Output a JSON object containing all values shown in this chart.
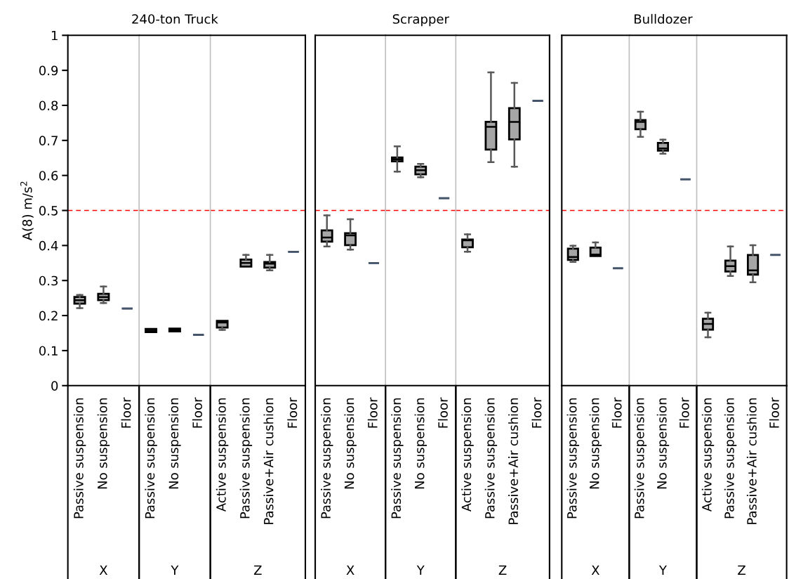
{
  "chart_data": [
    {
      "type": "box",
      "ylabel": "A(8) m/s$^{2}$",
      "xlabel": "X",
      "categories": [
        "Passive suspension",
        "No suspension",
        "Floor"
      ],
      "ylim": [
        0,
        1
      ],
      "yticks": [
        0,
        0.1,
        0.2,
        0.3,
        0.4,
        0.5,
        0.6,
        0.7,
        0.8,
        0.9,
        1
      ],
      "series": [
        {
          "colors": [
            "#a6a6a6",
            "#a6a6a6",
            "#44546a"
          ],
          "boxes": [
            {
              "low": 0.221,
              "q1": 0.234,
              "median": 0.244,
              "q3": 0.253,
              "high": 0.259
            },
            {
              "low": 0.236,
              "q1": 0.244,
              "median": 0.253,
              "q3": 0.262,
              "high": 0.283
            },
            {
              "low": 0.22,
              "q1": 0.22,
              "median": 0.22,
              "q3": 0.22,
              "high": 0.22
            }
          ]
        }
      ],
      "ref_lines": [
        {
          "axis": "y",
          "value": 0.5,
          "color": "#ff0000",
          "line_style": "dashed"
        }
      ]
    },
    {
      "type": "box",
      "title": "240-ton Truck",
      "xlabel": "Y",
      "tick_labels": "x",
      "categories": [
        "Passive suspension",
        "No suspension",
        "Floor"
      ],
      "ylim": [
        0,
        1
      ],
      "series": [
        {
          "colors": [
            "#a6a6a6",
            "#a6a6a6",
            "#44546a"
          ],
          "boxes": [
            {
              "low": 0.153,
              "q1": 0.153,
              "median": 0.157,
              "q3": 0.162,
              "high": 0.162
            },
            {
              "low": 0.155,
              "q1": 0.155,
              "median": 0.159,
              "q3": 0.163,
              "high": 0.163
            },
            {
              "low": 0.145,
              "q1": 0.145,
              "median": 0.145,
              "q3": 0.145,
              "high": 0.145
            }
          ]
        }
      ],
      "ref_lines": [
        {
          "axis": "y",
          "value": 0.5,
          "color": "#ff0000",
          "line_style": "dashed"
        }
      ]
    },
    {
      "type": "box",
      "xlabel": "Z",
      "tick_labels": "x",
      "categories": [
        "Active suspension",
        "Passive suspension",
        "Passive+Air cushion",
        "Floor"
      ],
      "ylim": [
        0,
        1
      ],
      "series": [
        {
          "colors": [
            "#a6a6a6",
            "#a6a6a6",
            "#a6a6a6",
            "#44546a"
          ],
          "boxes": [
            {
              "low": 0.159,
              "q1": 0.166,
              "median": 0.18,
              "q3": 0.185,
              "high": 0.185
            },
            {
              "low": 0.34,
              "q1": 0.34,
              "median": 0.35,
              "q3": 0.36,
              "high": 0.373
            },
            {
              "low": 0.329,
              "q1": 0.337,
              "median": 0.348,
              "q3": 0.353,
              "high": 0.373
            },
            {
              "low": 0.382,
              "q1": 0.382,
              "median": 0.382,
              "q3": 0.382,
              "high": 0.382
            }
          ]
        }
      ],
      "ref_lines": [
        {
          "axis": "y",
          "value": 0.5,
          "color": "#ff0000",
          "line_style": "dashed"
        }
      ]
    },
    {
      "type": "box",
      "xlabel": "X",
      "tick_labels": "x",
      "categories": [
        "Passive suspension",
        "No suspension",
        "Floor"
      ],
      "ylim": [
        0,
        1
      ],
      "series": [
        {
          "colors": [
            "#a6a6a6",
            "#a6a6a6",
            "#44546a"
          ],
          "boxes": [
            {
              "low": 0.397,
              "q1": 0.411,
              "median": 0.423,
              "q3": 0.443,
              "high": 0.486
            },
            {
              "low": 0.388,
              "q1": 0.401,
              "median": 0.429,
              "q3": 0.435,
              "high": 0.475
            },
            {
              "low": 0.35,
              "q1": 0.35,
              "median": 0.35,
              "q3": 0.35,
              "high": 0.35
            }
          ]
        }
      ],
      "ref_lines": [
        {
          "axis": "y",
          "value": 0.5,
          "color": "#ff0000",
          "line_style": "dashed"
        }
      ]
    },
    {
      "type": "box",
      "title": "Scrapper",
      "xlabel": "Y",
      "tick_labels": "x",
      "categories": [
        "Passive suspension",
        "No suspension",
        "Floor"
      ],
      "ylim": [
        0,
        1
      ],
      "series": [
        {
          "colors": [
            "#a6a6a6",
            "#a6a6a6",
            "#44546a"
          ],
          "boxes": [
            {
              "low": 0.611,
              "q1": 0.64,
              "median": 0.646,
              "q3": 0.651,
              "high": 0.683
            },
            {
              "low": 0.595,
              "q1": 0.603,
              "median": 0.615,
              "q3": 0.625,
              "high": 0.633
            },
            {
              "low": 0.535,
              "q1": 0.535,
              "median": 0.535,
              "q3": 0.535,
              "high": 0.535
            }
          ]
        }
      ],
      "ref_lines": [
        {
          "axis": "y",
          "value": 0.5,
          "color": "#ff0000",
          "line_style": "dashed"
        }
      ]
    },
    {
      "type": "box",
      "xlabel": "Z",
      "tick_labels": "x",
      "categories": [
        "Active suspension",
        "Passive suspension",
        "Passive+Air cushion",
        "Floor"
      ],
      "ylim": [
        0,
        1
      ],
      "series": [
        {
          "colors": [
            "#a6a6a6",
            "#a6a6a6",
            "#a6a6a6",
            "#44546a"
          ],
          "boxes": [
            {
              "low": 0.382,
              "q1": 0.395,
              "median": 0.415,
              "q3": 0.417,
              "high": 0.432
            },
            {
              "low": 0.638,
              "q1": 0.674,
              "median": 0.739,
              "q3": 0.753,
              "high": 0.894
            },
            {
              "low": 0.625,
              "q1": 0.703,
              "median": 0.753,
              "q3": 0.792,
              "high": 0.864
            },
            {
              "low": 0.813,
              "q1": 0.813,
              "median": 0.813,
              "q3": 0.813,
              "high": 0.813
            }
          ]
        }
      ],
      "ref_lines": [
        {
          "axis": "y",
          "value": 0.5,
          "color": "#ff0000",
          "line_style": "dashed"
        }
      ]
    },
    {
      "type": "box",
      "xlabel": "X",
      "tick_labels": "x",
      "categories": [
        "Passive suspension",
        "No suspension",
        "Floor"
      ],
      "ylim": [
        0,
        1
      ],
      "series": [
        {
          "colors": [
            "#a6a6a6",
            "#a6a6a6",
            "#44546a"
          ],
          "boxes": [
            {
              "low": 0.353,
              "q1": 0.359,
              "median": 0.367,
              "q3": 0.391,
              "high": 0.399
            },
            {
              "low": 0.37,
              "q1": 0.37,
              "median": 0.374,
              "q3": 0.394,
              "high": 0.409
            },
            {
              "low": 0.335,
              "q1": 0.335,
              "median": 0.335,
              "q3": 0.335,
              "high": 0.335
            }
          ]
        }
      ],
      "ref_lines": [
        {
          "axis": "y",
          "value": 0.5,
          "color": "#ff0000",
          "line_style": "dashed"
        }
      ]
    },
    {
      "type": "box",
      "title": "Bulldozer",
      "xlabel": "Y",
      "tick_labels": "x",
      "categories": [
        "Passive suspension",
        "No suspension",
        "Floor"
      ],
      "ylim": [
        0,
        1
      ],
      "series": [
        {
          "colors": [
            "#a6a6a6",
            "#a6a6a6",
            "#44546a"
          ],
          "boxes": [
            {
              "low": 0.71,
              "q1": 0.732,
              "median": 0.753,
              "q3": 0.758,
              "high": 0.782
            },
            {
              "low": 0.662,
              "q1": 0.671,
              "median": 0.677,
              "q3": 0.693,
              "high": 0.702
            },
            {
              "low": 0.589,
              "q1": 0.589,
              "median": 0.589,
              "q3": 0.589,
              "high": 0.589
            }
          ]
        }
      ],
      "ref_lines": [
        {
          "axis": "y",
          "value": 0.5,
          "color": "#ff0000",
          "line_style": "dashed"
        }
      ]
    },
    {
      "type": "box",
      "xlabel": "Z",
      "tick_labels": "x",
      "categories": [
        "Active suspension",
        "Passive suspension",
        "Passive+Air cushion",
        "Floor"
      ],
      "ylim": [
        0,
        1
      ],
      "series": [
        {
          "colors": [
            "#a6a6a6",
            "#a6a6a6",
            "#a6a6a6",
            "#44546a"
          ],
          "boxes": [
            {
              "low": 0.138,
              "q1": 0.16,
              "median": 0.176,
              "q3": 0.191,
              "high": 0.208
            },
            {
              "low": 0.313,
              "q1": 0.326,
              "median": 0.341,
              "q3": 0.357,
              "high": 0.397
            },
            {
              "low": 0.295,
              "q1": 0.317,
              "median": 0.329,
              "q3": 0.373,
              "high": 0.401
            },
            {
              "low": 0.373,
              "q1": 0.373,
              "median": 0.373,
              "q3": 0.373,
              "high": 0.373
            }
          ]
        }
      ],
      "ref_lines": [
        {
          "axis": "y",
          "value": 0.5,
          "color": "#ff0000",
          "line_style": "dashed"
        }
      ]
    }
  ]
}
